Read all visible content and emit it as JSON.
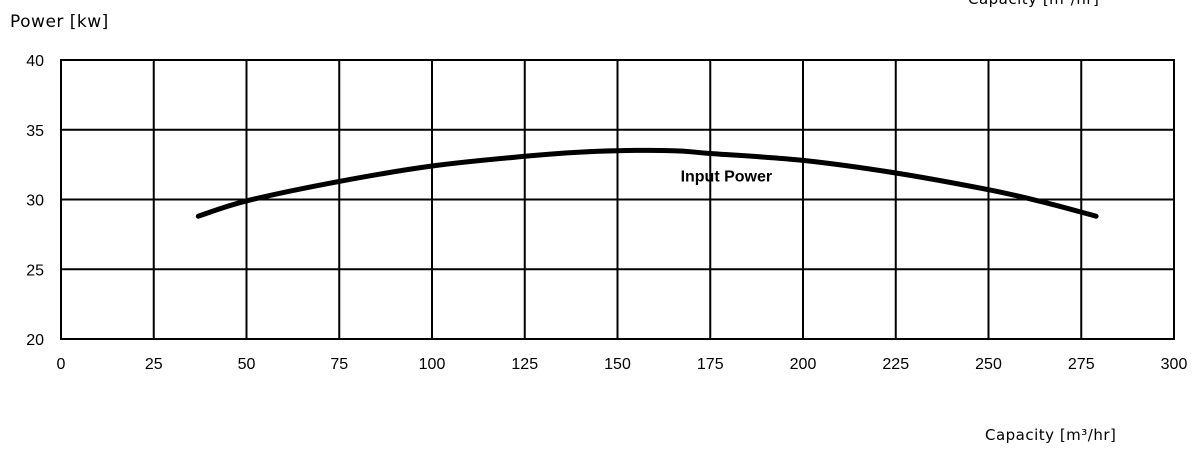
{
  "chart_data": {
    "type": "line",
    "ylabel": "Power [kw]",
    "xlabel": "Capacity [m³/hr]",
    "xlim": [
      0,
      300
    ],
    "ylim": [
      20,
      40
    ],
    "xticks": [
      "0",
      "25",
      "50",
      "75",
      "100",
      "125",
      "150",
      "175",
      "200",
      "225",
      "250",
      "275",
      "300"
    ],
    "yticks": [
      "20",
      "25",
      "30",
      "35",
      "40"
    ],
    "grid": true,
    "annotations": [
      {
        "text": "Input Power",
        "x": 167,
        "y": 31.3
      }
    ],
    "series": [
      {
        "x": [
          37,
          50,
          75,
          100,
          125,
          140,
          150,
          165,
          175,
          200,
          225,
          250,
          265,
          279
        ],
        "values": [
          28.8,
          29.9,
          31.3,
          32.4,
          33.1,
          33.4,
          33.5,
          33.5,
          33.3,
          32.8,
          31.9,
          30.7,
          29.8,
          28.8
        ]
      }
    ],
    "color": "#000000"
  }
}
